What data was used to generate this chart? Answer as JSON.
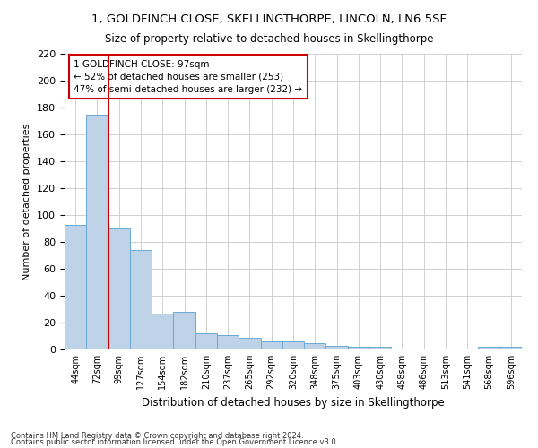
{
  "title1": "1, GOLDFINCH CLOSE, SKELLINGTHORPE, LINCOLN, LN6 5SF",
  "title2": "Size of property relative to detached houses in Skellingthorpe",
  "xlabel": "Distribution of detached houses by size in Skellingthorpe",
  "ylabel": "Number of detached properties",
  "categories": [
    "44sqm",
    "72sqm",
    "99sqm",
    "127sqm",
    "154sqm",
    "182sqm",
    "210sqm",
    "237sqm",
    "265sqm",
    "292sqm",
    "320sqm",
    "348sqm",
    "375sqm",
    "403sqm",
    "430sqm",
    "458sqm",
    "486sqm",
    "513sqm",
    "541sqm",
    "568sqm",
    "596sqm"
  ],
  "values": [
    93,
    175,
    90,
    74,
    27,
    28,
    12,
    11,
    9,
    6,
    6,
    5,
    3,
    2,
    2,
    1,
    0,
    0,
    0,
    2,
    2
  ],
  "bar_color": "#bed3e8",
  "bar_edge_color": "#6aaad4",
  "property_line_x": 1.5,
  "property_line_color": "#cc0000",
  "annotation_line1": "1 GOLDFINCH CLOSE: 97sqm",
  "annotation_line2": "← 52% of detached houses are smaller (253)",
  "annotation_line3": "47% of semi-detached houses are larger (232) →",
  "annotation_box_color": "#ffffff",
  "annotation_box_edge_color": "#cc0000",
  "ylim": [
    0,
    220
  ],
  "yticks": [
    0,
    20,
    40,
    60,
    80,
    100,
    120,
    140,
    160,
    180,
    200,
    220
  ],
  "footnote1": "Contains HM Land Registry data © Crown copyright and database right 2024.",
  "footnote2": "Contains public sector information licensed under the Open Government Licence v3.0.",
  "background_color": "#ffffff",
  "grid_color": "#d0d0d0"
}
